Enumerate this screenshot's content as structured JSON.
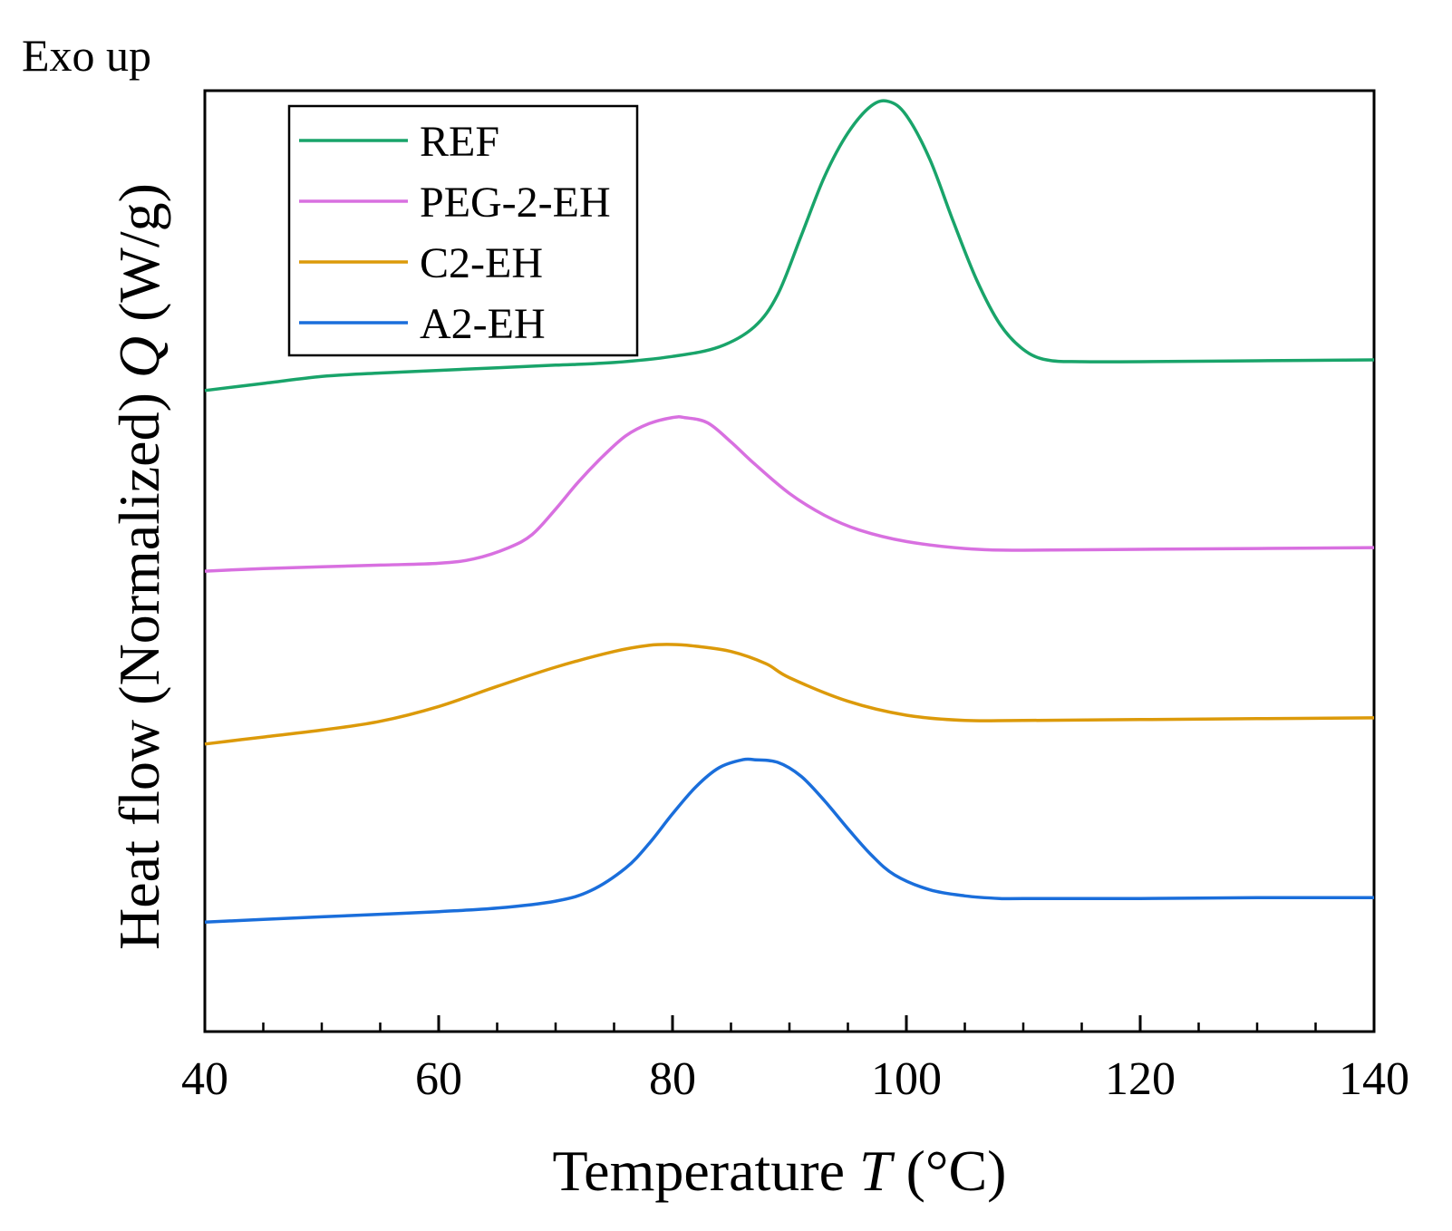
{
  "annotation": "Exo up",
  "chart_data": {
    "type": "line",
    "xlabel": {
      "main": "Temperature ",
      "symbol": "T",
      "unit": " (°C)"
    },
    "ylabel": {
      "main": "Heat flow (Normalized) ",
      "symbol": "Q",
      "unit": " (W/g)"
    },
    "xlim": [
      40,
      140
    ],
    "ylim": [
      0,
      100
    ],
    "xticks": [
      40,
      60,
      80,
      100,
      120,
      140
    ],
    "xtick_labels": [
      "40",
      "60",
      "80",
      "100",
      "120",
      "140"
    ],
    "minor_xticks": [
      45,
      50,
      55,
      65,
      70,
      75,
      85,
      90,
      95,
      105,
      110,
      115,
      125,
      130,
      135
    ],
    "y_tick_labels": false,
    "grid": false,
    "legend": "top-left",
    "series": [
      {
        "name": "REF",
        "color": "#19a46a",
        "x": [
          40,
          45,
          50,
          55,
          60,
          65,
          70,
          75,
          80,
          84,
          87,
          89,
          91,
          93,
          95,
          97,
          98.5,
          100,
          102,
          104,
          106,
          108,
          110,
          112,
          115,
          120,
          130,
          140
        ],
        "y": [
          66.9,
          67.7,
          68.5,
          68.9,
          69.2,
          69.5,
          69.8,
          70.1,
          70.8,
          71.9,
          74.2,
          77.9,
          84.6,
          91.4,
          96.4,
          99.5,
          100.0,
          98.4,
          93.4,
          86.3,
          79.6,
          74.5,
          71.6,
          70.4,
          70.2,
          70.2,
          70.3,
          70.4
        ]
      },
      {
        "name": "PEG-2-EH",
        "color": "#d870e0",
        "x": [
          40,
          45,
          50,
          55,
          60,
          63,
          66,
          68,
          70,
          72,
          74,
          76,
          78,
          80,
          81,
          83,
          85,
          87,
          90,
          93,
          96,
          100,
          105,
          110,
          120,
          130,
          140
        ],
        "y": [
          46.2,
          46.5,
          46.7,
          46.9,
          47.1,
          47.6,
          48.9,
          50.4,
          53.3,
          56.5,
          59.3,
          61.7,
          63.1,
          63.8,
          63.8,
          63.2,
          61.0,
          58.5,
          55.1,
          52.6,
          50.9,
          49.6,
          48.8,
          48.6,
          48.7,
          48.8,
          48.9
        ]
      },
      {
        "name": "C2-EH",
        "color": "#dc9a0a",
        "x": [
          40,
          45,
          50,
          55,
          60,
          65,
          70,
          75,
          78,
          80,
          82,
          85,
          88,
          90,
          95,
          100,
          105,
          110,
          120,
          130,
          140
        ],
        "y": [
          26.4,
          27.2,
          28.0,
          29.0,
          30.7,
          33.0,
          35.2,
          37.0,
          37.7,
          37.8,
          37.6,
          37.0,
          35.6,
          34.0,
          31.3,
          29.7,
          29.1,
          29.1,
          29.2,
          29.3,
          29.4
        ]
      },
      {
        "name": "A2-EH",
        "color": "#1a6edb",
        "x": [
          40,
          45,
          50,
          55,
          60,
          65,
          70,
          73,
          76,
          78,
          80,
          82,
          84,
          86,
          87,
          89,
          91,
          93,
          95,
          97,
          99,
          102,
          105,
          108,
          110,
          120,
          130,
          140
        ],
        "y": [
          6.0,
          6.3,
          6.6,
          6.9,
          7.2,
          7.6,
          8.4,
          9.6,
          12.2,
          15.0,
          18.4,
          21.5,
          23.7,
          24.6,
          24.6,
          24.3,
          22.7,
          19.9,
          16.7,
          13.7,
          11.4,
          9.7,
          9.0,
          8.7,
          8.7,
          8.7,
          8.8,
          8.8
        ]
      }
    ]
  }
}
